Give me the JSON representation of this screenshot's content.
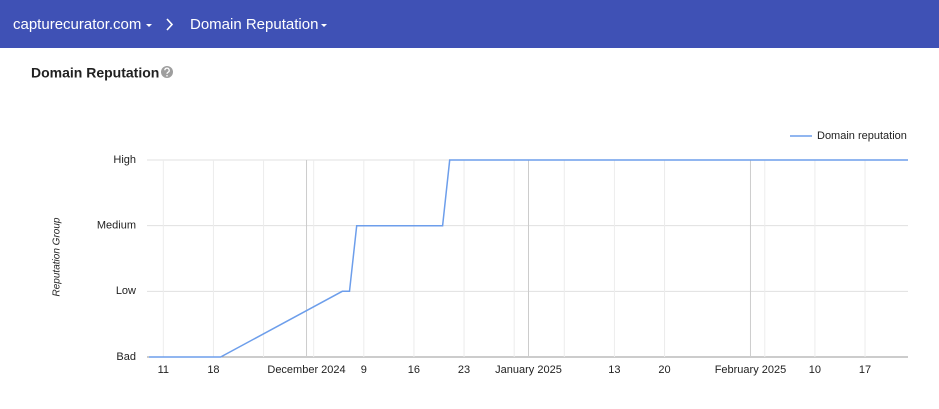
{
  "header": {
    "breadcrumb": [
      "capturecurator.com",
      "Domain Reputation"
    ]
  },
  "panel": {
    "title": "Domain Reputation"
  },
  "chart_data": {
    "type": "line",
    "y_label": "Reputation Group",
    "x": [
      "2024-11-09",
      "2024-11-19",
      "2024-12-06",
      "2024-12-07",
      "2024-12-08",
      "2024-12-20",
      "2024-12-21",
      "2025-02-23"
    ],
    "series": [
      {
        "name": "Domain reputation",
        "color": "#6d9eeb",
        "values": [
          0,
          0,
          1,
          1,
          2,
          2,
          3,
          3
        ]
      }
    ],
    "xlim": [
      "2024-11-09",
      "2025-02-23"
    ],
    "xticks": [
      {
        "value": "2024-11-11",
        "label": "11"
      },
      {
        "value": "2024-11-18",
        "label": "18"
      },
      {
        "value": "2024-12-01",
        "label": "December 2024"
      },
      {
        "value": "2024-12-09",
        "label": "9"
      },
      {
        "value": "2024-12-16",
        "label": "16"
      },
      {
        "value": "2024-12-23",
        "label": "23"
      },
      {
        "value": "2025-01-01",
        "label": "January 2025"
      },
      {
        "value": "2025-01-13",
        "label": "13"
      },
      {
        "value": "2025-01-20",
        "label": "20"
      },
      {
        "value": "2025-02-01",
        "label": "February 2025"
      },
      {
        "value": "2025-02-10",
        "label": "10"
      },
      {
        "value": "2025-02-17",
        "label": "17"
      }
    ],
    "x_minor_gridlines": [
      "2024-11-25",
      "2024-12-02",
      "2024-12-30",
      "2025-01-06",
      "2025-02-03"
    ],
    "ylim": [
      0,
      3
    ],
    "yticks": [
      {
        "value": 0,
        "label": "Bad"
      },
      {
        "value": 1,
        "label": "Low"
      },
      {
        "value": 2,
        "label": "Medium"
      },
      {
        "value": 3,
        "label": "High"
      }
    ],
    "grid": true,
    "legend": "top-right"
  }
}
